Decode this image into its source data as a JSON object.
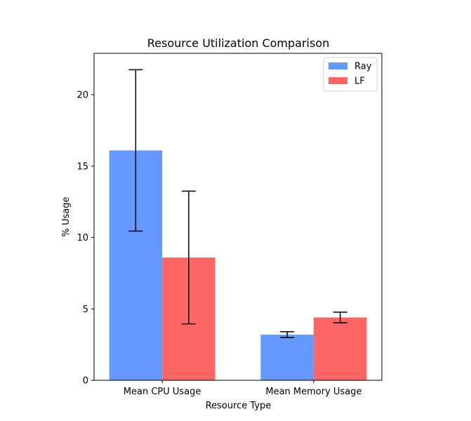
{
  "chart_data": {
    "type": "bar",
    "title": "Resource Utilization Comparison",
    "xlabel": "Resource Type",
    "ylabel": "% Usage",
    "categories": [
      "Mean CPU Usage",
      "Mean Memory Usage"
    ],
    "series": [
      {
        "name": "Ray",
        "color": "#6699ff",
        "values": [
          16.1,
          3.2
        ],
        "errors": [
          5.65,
          0.2
        ]
      },
      {
        "name": "LF",
        "color": "#ff6666",
        "values": [
          8.6,
          4.4
        ],
        "errors": [
          4.65,
          0.37
        ]
      }
    ],
    "ylim": [
      0,
      22.9
    ],
    "yticks": [
      0,
      5,
      10,
      15,
      20
    ],
    "grid": false,
    "legend_position": "top-right"
  }
}
